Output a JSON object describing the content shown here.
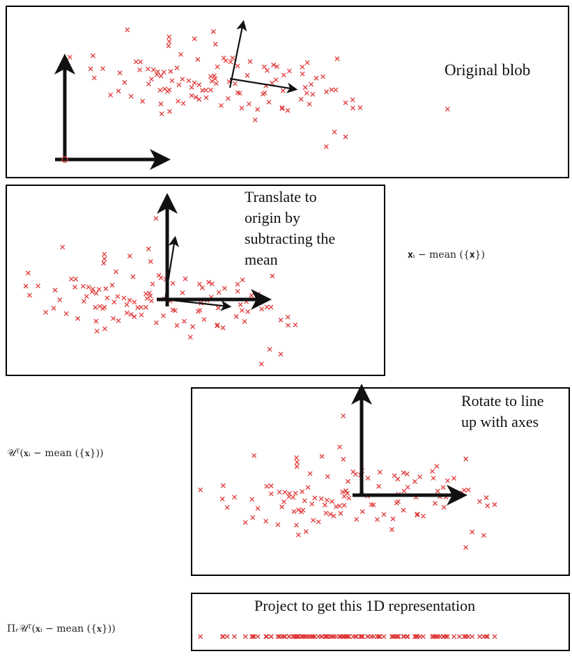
{
  "diagram": {
    "panels": [
      {
        "id": "original",
        "caption": "Original blob"
      },
      {
        "id": "translated",
        "caption": "Translate to origin by subtracting the mean",
        "caption_lines": [
          "Translate to",
          "origin by",
          "subtracting the",
          "mean"
        ]
      },
      {
        "id": "rotated",
        "caption": "Rotate to line up with axes",
        "caption_lines": [
          "Rotate to line",
          "up with axes"
        ]
      },
      {
        "id": "projected",
        "caption": "Project to get this 1D representation"
      }
    ],
    "formulas": {
      "translate": "𝐱ᵢ − mean ({𝐱})",
      "rotate": "𝒰ᵀ(𝐱ᵢ − mean ({𝐱}))",
      "project": "Πᵣ𝒰ᵀ(𝐱ᵢ − mean ({𝐱}))"
    },
    "colors": {
      "point": "#e03a3a",
      "axis": "#111111",
      "border": "#000000"
    }
  }
}
